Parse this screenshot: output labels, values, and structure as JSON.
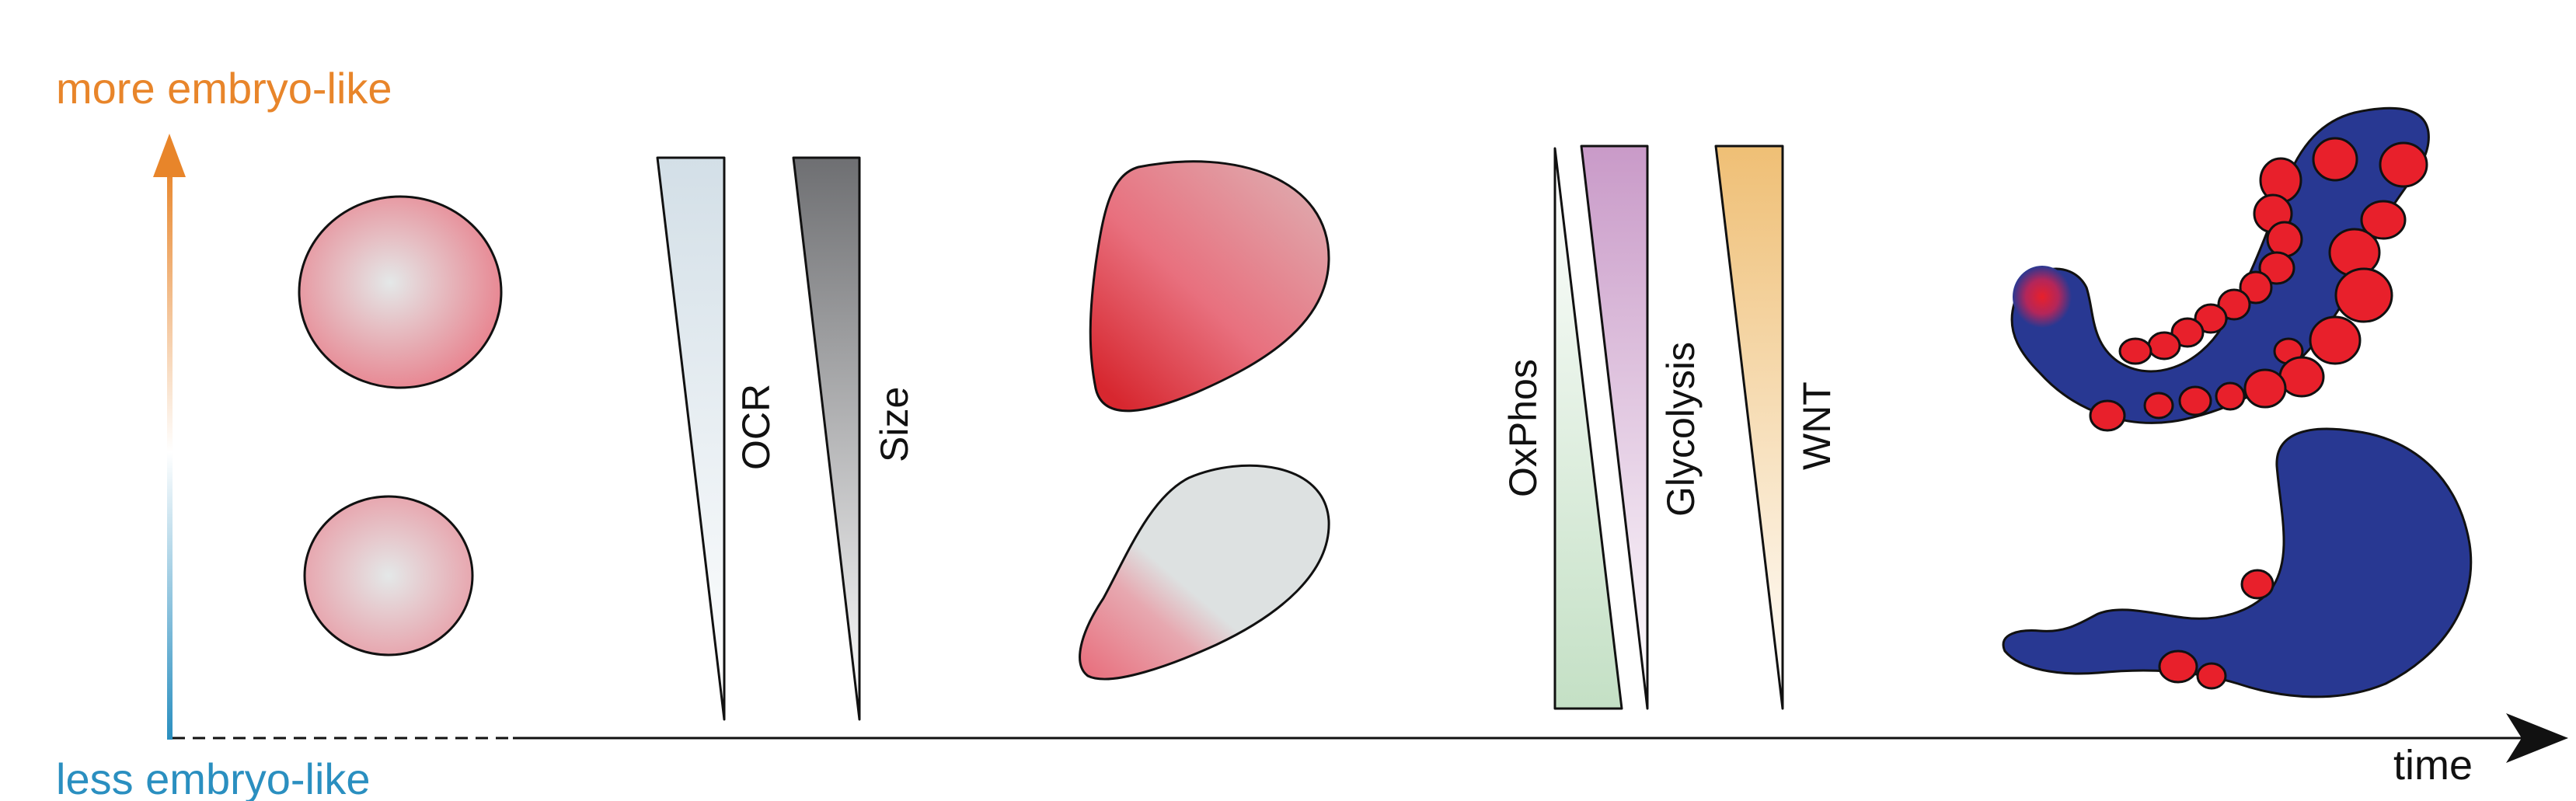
{
  "axis": {
    "top_label": "more embryo-like",
    "bottom_label": "less embryo-like",
    "x_label": "time",
    "top_color": "#e8852a",
    "bottom_color": "#2a8fc0"
  },
  "gradients": {
    "group1": [
      {
        "label": "OCR",
        "fill_from": "#d3dfe7",
        "fill_to": "#ffffff"
      },
      {
        "label": "Size",
        "fill_from": "#6e6f72",
        "fill_to": "#ffffff"
      }
    ],
    "group2": [
      {
        "label": "OxPhos",
        "fill_from": "#ffffff",
        "fill_to": "#c4e0c5"
      },
      {
        "label": "Glycolysis",
        "fill_from": "#c99ac8",
        "fill_to": "#ffffff"
      },
      {
        "label": "WNT",
        "fill_from": "#efbf75",
        "fill_to": "#ffffff"
      }
    ]
  },
  "colors": {
    "embryo_pink": "#e8707e",
    "embryo_red": "#d7272f",
    "pale_grey": "#dde1e1",
    "gastruloid_blue": "#283892",
    "somite_red": "#e8202b"
  }
}
